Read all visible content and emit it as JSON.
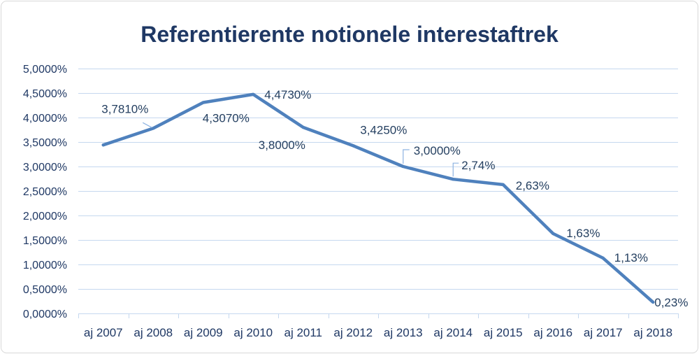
{
  "chart_data": {
    "type": "line",
    "title": "Referentierente notionele interestaftrek",
    "categories": [
      "aj 2007",
      "aj 2008",
      "aj 2009",
      "aj 2010",
      "aj 2011",
      "aj 2012",
      "aj 2013",
      "aj 2014",
      "aj 2015",
      "aj 2016",
      "aj 2017",
      "aj 2018"
    ],
    "series": [
      {
        "values": [
          3.44,
          3.781,
          4.307,
          4.473,
          3.8,
          3.425,
          3.0,
          2.74,
          2.63,
          1.63,
          1.13,
          0.23
        ],
        "data_labels": [
          null,
          "3,7810%",
          "4,3070%",
          "4,4730%",
          "3,8000%",
          "3,4250%",
          "3,0000%",
          "2,74%",
          "2,63%",
          "1,63%",
          "1,13%",
          "0,23%"
        ],
        "color": "#4f81bd"
      }
    ],
    "ylim": [
      0,
      5
    ],
    "yticks": [
      "0,0000%",
      "0,5000%",
      "1,0000%",
      "1,5000%",
      "2,0000%",
      "2,5000%",
      "3,0000%",
      "3,5000%",
      "4,0000%",
      "4,5000%",
      "5,0000%"
    ],
    "grid": true,
    "legend": "none"
  },
  "colors": {
    "line": "#4f81bd",
    "gridline": "#c5d8ef",
    "leader": "#8db3e2",
    "title": "#1f3864",
    "axis_text": "#1f3864",
    "label_text": "#243f60",
    "border": "#d9d9d9"
  }
}
